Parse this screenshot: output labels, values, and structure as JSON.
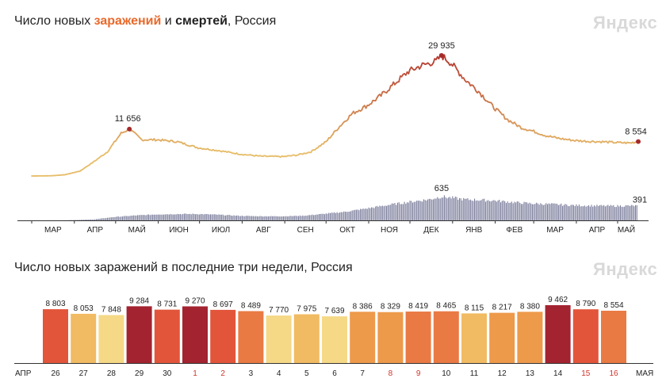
{
  "top": {
    "title_prefix": "Число новых ",
    "title_infections": "заражений",
    "title_mid": " и ",
    "title_deaths": "смертей",
    "title_suffix": ", Россия",
    "logo": "Яндекс"
  },
  "bottom": {
    "title": "Число новых заражений в последние три недели, Россия",
    "logo": "Яндекс"
  },
  "colors": {
    "infections_low": "#e7bd6a",
    "infections_high": "#b3362e",
    "deaths_bar": "#7b7d9c",
    "peak_dot": "#a52a2a",
    "weekend_label": "#d0342c"
  },
  "chart_data": [
    {
      "type": "line",
      "series": [
        {
          "name": "заражений",
          "x": [
            "2020-03-01",
            "2020-03-15",
            "2020-03-25",
            "2020-04-05",
            "2020-04-15",
            "2020-04-25",
            "2020-05-05",
            "2020-05-11",
            "2020-05-20",
            "2020-05-31",
            "2020-06-15",
            "2020-06-30",
            "2020-07-15",
            "2020-07-31",
            "2020-08-15",
            "2020-08-31",
            "2020-09-10",
            "2020-09-20",
            "2020-10-01",
            "2020-10-10",
            "2020-10-20",
            "2020-10-31",
            "2020-11-10",
            "2020-11-20",
            "2020-11-30",
            "2020-12-10",
            "2020-12-20",
            "2020-12-24",
            "2020-12-31",
            "2021-01-10",
            "2021-01-20",
            "2021-01-31",
            "2021-02-10",
            "2021-02-20",
            "2021-02-28",
            "2021-03-10",
            "2021-03-20",
            "2021-03-31",
            "2021-04-10",
            "2021-04-20",
            "2021-04-30",
            "2021-05-10",
            "2021-05-16"
          ],
          "values": [
            0,
            50,
            300,
            1200,
            3500,
            6000,
            10600,
            11656,
            9000,
            9000,
            8500,
            7000,
            6300,
            5400,
            4900,
            4800,
            5200,
            6000,
            8500,
            12000,
            15500,
            17500,
            20000,
            23000,
            26000,
            27500,
            28500,
            29935,
            28000,
            24000,
            21000,
            17000,
            14000,
            12000,
            11200,
            10000,
            9300,
            8800,
            8600,
            8500,
            8300,
            8200,
            8554
          ]
        },
        {
          "name": "смертей",
          "x": [
            "2020-03-01",
            "2020-03-25",
            "2020-04-15",
            "2020-04-30",
            "2020-05-15",
            "2020-05-31",
            "2020-06-15",
            "2020-06-30",
            "2020-07-15",
            "2020-07-31",
            "2020-08-15",
            "2020-08-31",
            "2020-09-15",
            "2020-09-30",
            "2020-10-15",
            "2020-10-31",
            "2020-11-15",
            "2020-11-30",
            "2020-12-15",
            "2020-12-24",
            "2021-01-10",
            "2021-01-31",
            "2021-02-15",
            "2021-02-28",
            "2021-03-15",
            "2021-03-31",
            "2021-04-15",
            "2021-04-30",
            "2021-05-16"
          ],
          "values": [
            0,
            2,
            25,
            90,
            130,
            160,
            170,
            170,
            150,
            120,
            110,
            110,
            125,
            175,
            230,
            320,
            410,
            490,
            560,
            635,
            560,
            530,
            480,
            450,
            430,
            400,
            390,
            385,
            391
          ]
        }
      ],
      "annotations": [
        {
          "label": "11 656",
          "x": "2020-05-11",
          "value": 11656
        },
        {
          "label": "29 935",
          "x": "2020-12-24",
          "value": 29935
        },
        {
          "label": "8 554",
          "x": "2021-05-16",
          "value": 8554
        },
        {
          "label": "635",
          "x": "2020-12-24",
          "value": 635
        },
        {
          "label": "391",
          "x": "2021-05-16",
          "value": 391
        }
      ],
      "tick_labels": [
        "МАР",
        "АПР",
        "МАЙ",
        "ИЮН",
        "ИЮЛ",
        "АВГ",
        "СЕН",
        "ОКТ",
        "НОЯ",
        "ДЕК",
        "ЯНВ",
        "ФЕВ",
        "МАР",
        "АПР",
        "МАЙ"
      ]
    },
    {
      "type": "bar",
      "categories": [
        "26",
        "27",
        "28",
        "29",
        "30",
        "1",
        "2",
        "3",
        "4",
        "5",
        "6",
        "7",
        "8",
        "9",
        "10",
        "11",
        "12",
        "13",
        "14",
        "15",
        "16"
      ],
      "values": [
        8803,
        8053,
        7848,
        9284,
        8731,
        9270,
        8697,
        8489,
        7770,
        7975,
        7639,
        8386,
        8329,
        8419,
        8465,
        8115,
        8217,
        8380,
        9462,
        8790,
        8554
      ],
      "value_labels": [
        "8 803",
        "8 053",
        "7 848",
        "9 284",
        "8 731",
        "9 270",
        "8 697",
        "8 489",
        "7 770",
        "7 975",
        "7 639",
        "8 386",
        "8 329",
        "8 419",
        "8 465",
        "8 115",
        "8 217",
        "8 380",
        "9 462",
        "8 790",
        "8 554"
      ],
      "weekend": [
        false,
        false,
        false,
        false,
        false,
        true,
        true,
        false,
        false,
        false,
        false,
        false,
        true,
        true,
        false,
        false,
        false,
        false,
        false,
        true,
        true
      ],
      "month_start": "АПР",
      "month_end": "МАЯ"
    }
  ]
}
